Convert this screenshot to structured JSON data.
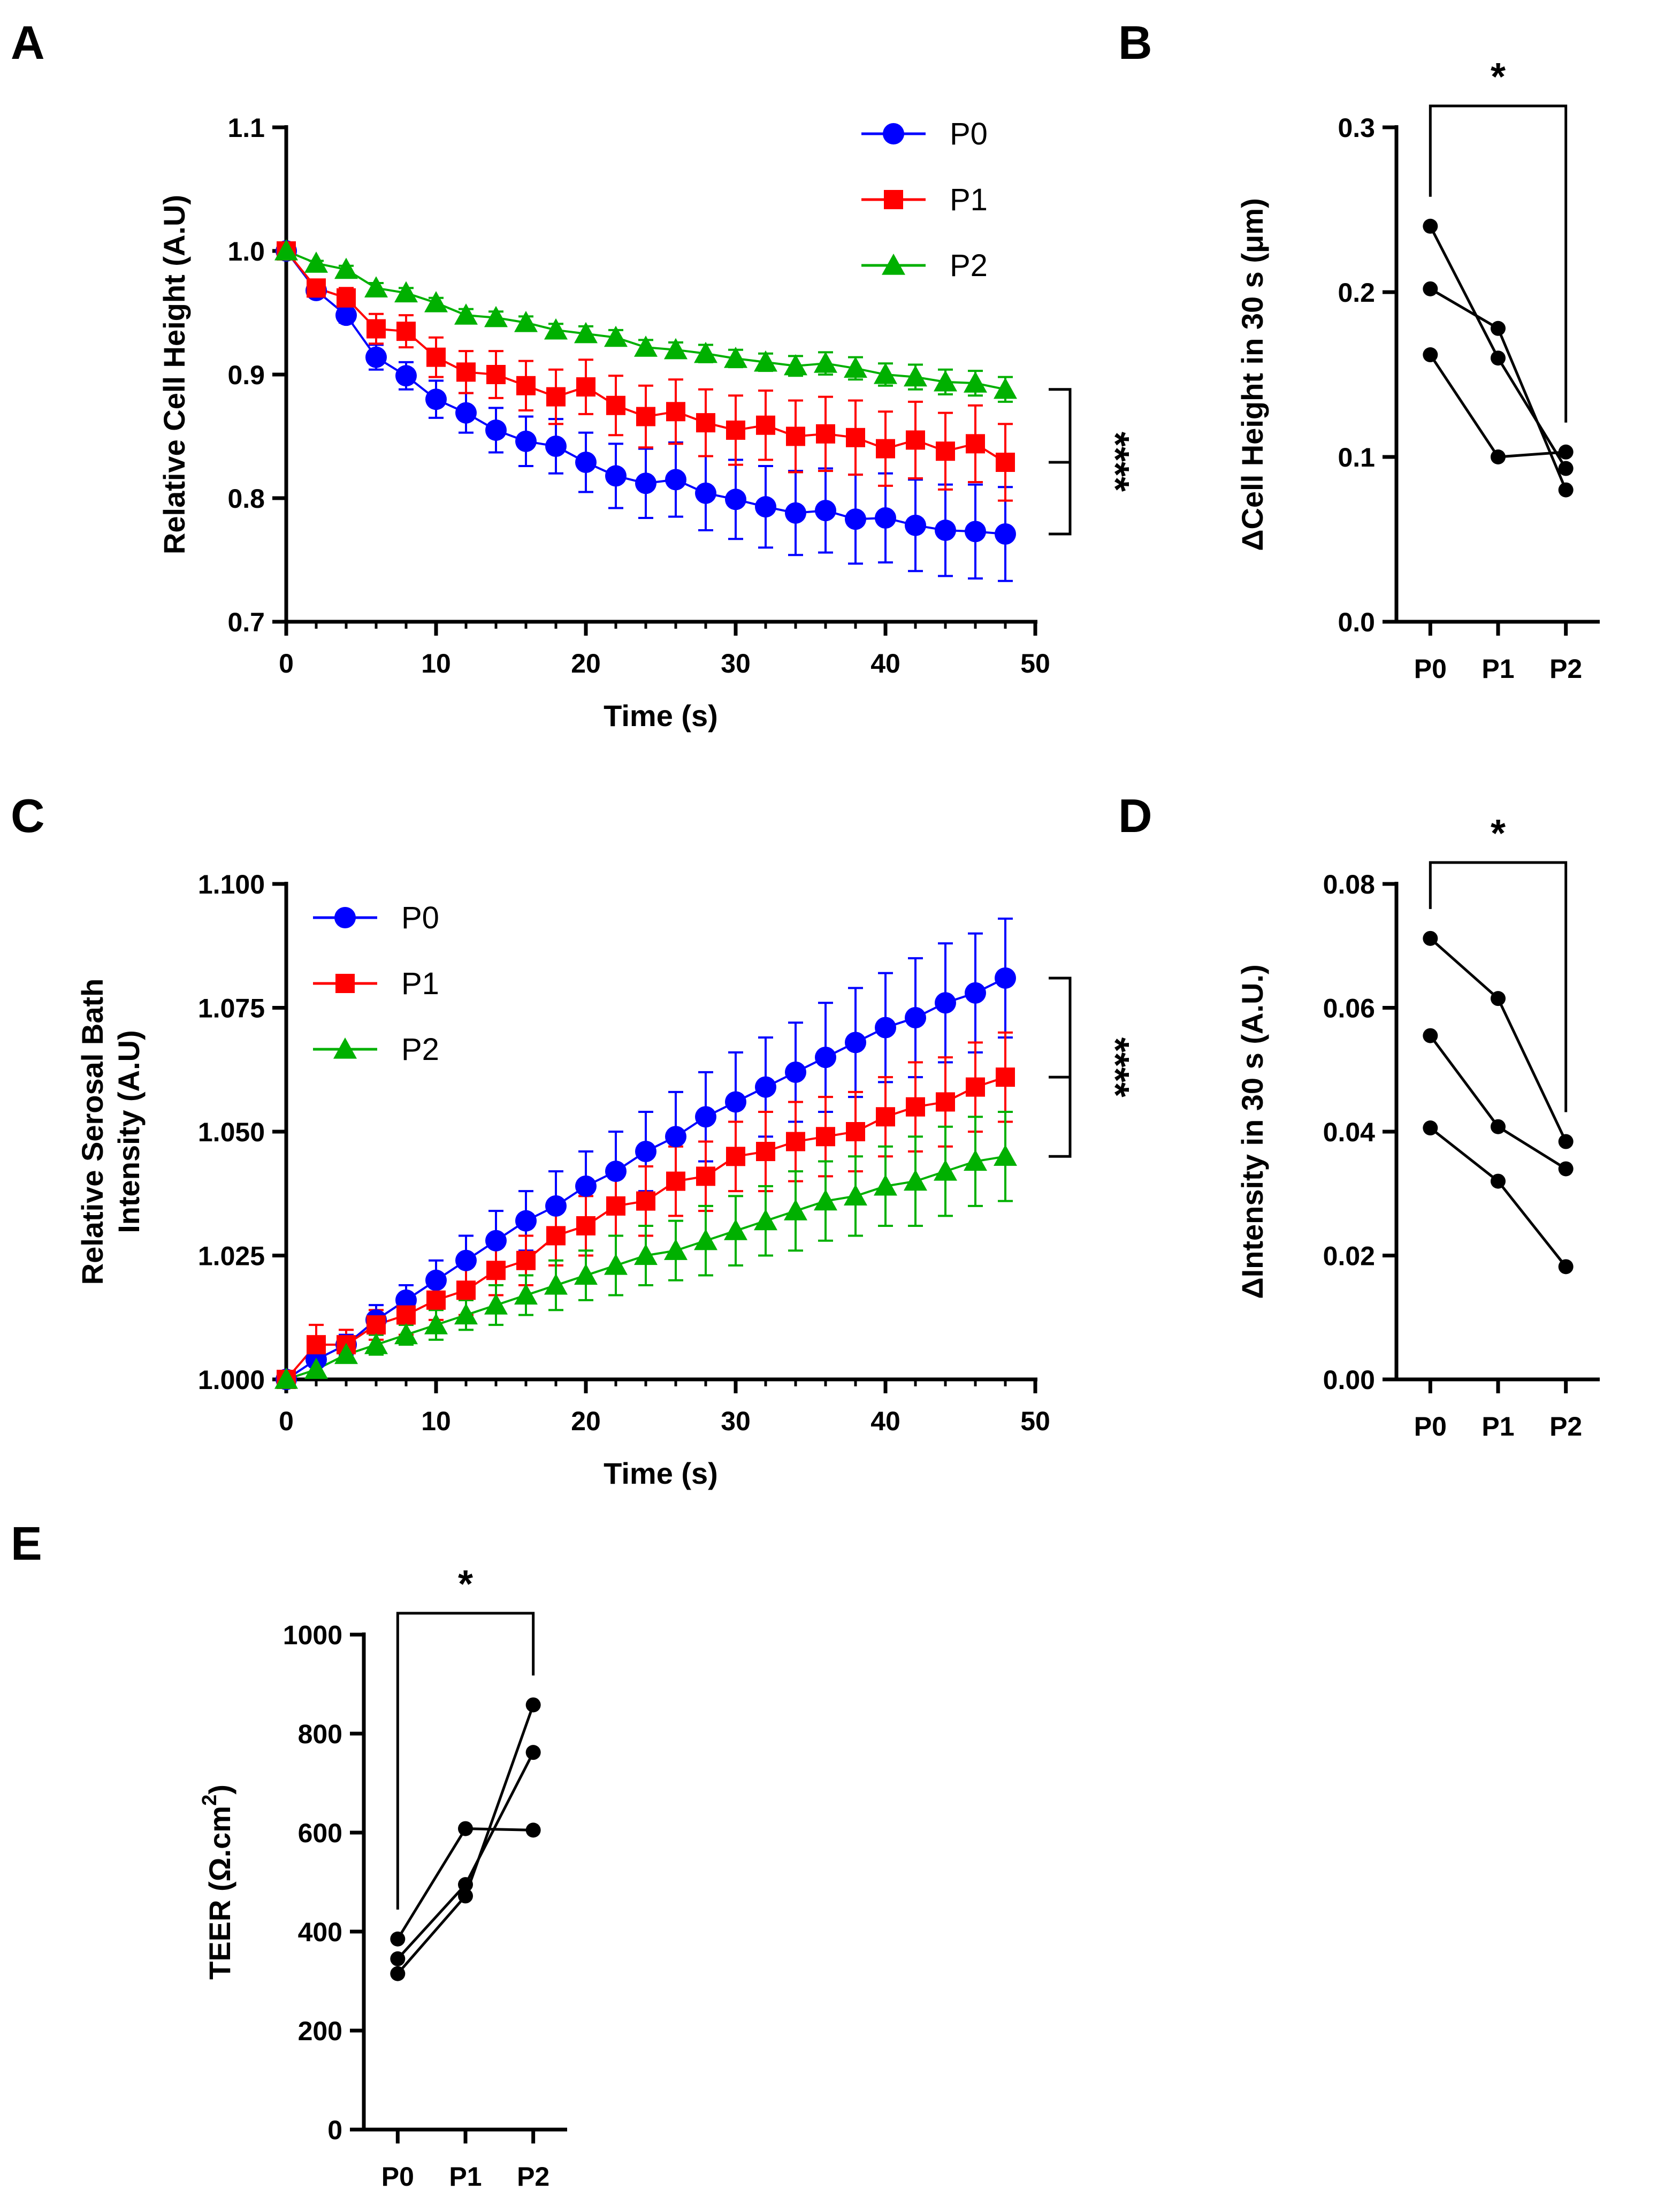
{
  "panels": {
    "A": "A",
    "B": "B",
    "C": "C",
    "D": "D",
    "E": "E"
  },
  "chart_data": [
    {
      "id": "A",
      "type": "line",
      "xlabel": "Time (s)",
      "ylabel": "Relative Cell Height (A.U)",
      "xlim": [
        0,
        50
      ],
      "ylim": [
        0.7,
        1.1
      ],
      "xticks": [
        0,
        10,
        20,
        30,
        40,
        50
      ],
      "yticks": [
        "0.7",
        "0.8",
        "0.9",
        "1.0",
        "1.1"
      ],
      "x": [
        0,
        2,
        4,
        6,
        8,
        10,
        12,
        14,
        16,
        18,
        20,
        22,
        24,
        26,
        28,
        30,
        32,
        34,
        36,
        38,
        40,
        42,
        44,
        46,
        48
      ],
      "legend_position": "top-right",
      "significance": "****",
      "series": [
        {
          "name": "P0",
          "color": "#0000ff",
          "marker": "circle",
          "values": [
            1.0,
            0.968,
            0.948,
            0.914,
            0.899,
            0.88,
            0.869,
            0.855,
            0.846,
            0.842,
            0.829,
            0.818,
            0.812,
            0.815,
            0.804,
            0.799,
            0.793,
            0.788,
            0.79,
            0.783,
            0.784,
            0.778,
            0.774,
            0.773,
            0.771
          ],
          "errors": [
            0,
            0.005,
            0.006,
            0.01,
            0.011,
            0.015,
            0.016,
            0.018,
            0.02,
            0.022,
            0.024,
            0.026,
            0.028,
            0.03,
            0.03,
            0.032,
            0.033,
            0.034,
            0.034,
            0.036,
            0.036,
            0.037,
            0.037,
            0.038,
            0.038
          ]
        },
        {
          "name": "P1",
          "color": "#ff0000",
          "marker": "square",
          "values": [
            1.0,
            0.97,
            0.962,
            0.937,
            0.935,
            0.914,
            0.902,
            0.9,
            0.891,
            0.882,
            0.89,
            0.875,
            0.866,
            0.87,
            0.861,
            0.855,
            0.859,
            0.85,
            0.852,
            0.849,
            0.84,
            0.847,
            0.838,
            0.844,
            0.829
          ],
          "errors": [
            0,
            0.006,
            0.008,
            0.012,
            0.013,
            0.016,
            0.017,
            0.019,
            0.02,
            0.022,
            0.022,
            0.024,
            0.025,
            0.026,
            0.027,
            0.028,
            0.028,
            0.029,
            0.03,
            0.03,
            0.03,
            0.031,
            0.031,
            0.031,
            0.031
          ]
        },
        {
          "name": "P2",
          "color": "#00b000",
          "marker": "triangle",
          "values": [
            1.0,
            0.99,
            0.985,
            0.97,
            0.966,
            0.958,
            0.948,
            0.946,
            0.942,
            0.936,
            0.933,
            0.93,
            0.922,
            0.92,
            0.917,
            0.913,
            0.91,
            0.907,
            0.909,
            0.905,
            0.9,
            0.898,
            0.894,
            0.893,
            0.888
          ],
          "errors": [
            0,
            0.002,
            0.003,
            0.004,
            0.004,
            0.004,
            0.005,
            0.005,
            0.005,
            0.005,
            0.006,
            0.006,
            0.006,
            0.006,
            0.007,
            0.007,
            0.007,
            0.008,
            0.009,
            0.009,
            0.009,
            0.01,
            0.01,
            0.01,
            0.01
          ]
        }
      ]
    },
    {
      "id": "B",
      "type": "line",
      "ylabel": "ΔCell Height in 30 s (μm)",
      "categories": [
        "P0",
        "P1",
        "P2"
      ],
      "ylim": [
        0,
        0.3
      ],
      "yticks": [
        "0.0",
        "0.1",
        "0.2",
        "0.3"
      ],
      "significance": "*",
      "series": [
        {
          "values": [
            0.24,
            0.16,
            0.093
          ]
        },
        {
          "values": [
            0.202,
            0.178,
            0.08
          ]
        },
        {
          "values": [
            0.162,
            0.1,
            0.103
          ]
        }
      ]
    },
    {
      "id": "C",
      "type": "line",
      "xlabel": "Time (s)",
      "ylabel": "Relative Serosal Bath Intensity (A.U)",
      "ylabel_lines": [
        "Relative Serosal Bath",
        "Intensity (A.U)"
      ],
      "xlim": [
        0,
        50
      ],
      "ylim": [
        1.0,
        1.1
      ],
      "xticks": [
        0,
        10,
        20,
        30,
        40,
        50
      ],
      "yticks": [
        "1.000",
        "1.025",
        "1.050",
        "1.075",
        "1.100"
      ],
      "x": [
        0,
        2,
        4,
        6,
        8,
        10,
        12,
        14,
        16,
        18,
        20,
        22,
        24,
        26,
        28,
        30,
        32,
        34,
        36,
        38,
        40,
        42,
        44,
        46,
        48
      ],
      "legend_position": "top-left",
      "significance": "****",
      "series": [
        {
          "name": "P0",
          "color": "#0000ff",
          "marker": "circle",
          "values": [
            1.0,
            1.004,
            1.007,
            1.012,
            1.016,
            1.02,
            1.024,
            1.028,
            1.032,
            1.035,
            1.039,
            1.042,
            1.046,
            1.049,
            1.053,
            1.056,
            1.059,
            1.062,
            1.065,
            1.068,
            1.071,
            1.073,
            1.076,
            1.078,
            1.081
          ],
          "errors": [
            0,
            0.001,
            0.002,
            0.003,
            0.003,
            0.004,
            0.005,
            0.006,
            0.006,
            0.007,
            0.007,
            0.008,
            0.008,
            0.009,
            0.009,
            0.01,
            0.01,
            0.01,
            0.011,
            0.011,
            0.011,
            0.012,
            0.012,
            0.012,
            0.012
          ]
        },
        {
          "name": "P1",
          "color": "#ff0000",
          "marker": "square",
          "values": [
            1.0,
            1.007,
            1.007,
            1.011,
            1.013,
            1.016,
            1.018,
            1.022,
            1.024,
            1.029,
            1.031,
            1.035,
            1.036,
            1.04,
            1.041,
            1.045,
            1.046,
            1.048,
            1.049,
            1.05,
            1.053,
            1.055,
            1.056,
            1.059,
            1.061
          ],
          "errors": [
            0,
            0.004,
            0.003,
            0.003,
            0.004,
            0.004,
            0.005,
            0.005,
            0.005,
            0.006,
            0.006,
            0.006,
            0.007,
            0.007,
            0.007,
            0.007,
            0.008,
            0.008,
            0.008,
            0.008,
            0.008,
            0.009,
            0.009,
            0.009,
            0.009
          ]
        },
        {
          "name": "P2",
          "color": "#00b000",
          "marker": "triangle",
          "values": [
            1.0,
            1.002,
            1.005,
            1.007,
            1.009,
            1.011,
            1.013,
            1.015,
            1.017,
            1.019,
            1.021,
            1.023,
            1.025,
            1.026,
            1.028,
            1.03,
            1.032,
            1.034,
            1.036,
            1.037,
            1.039,
            1.04,
            1.042,
            1.044,
            1.045
          ],
          "errors": [
            0,
            0.001,
            0.001,
            0.002,
            0.002,
            0.003,
            0.003,
            0.004,
            0.004,
            0.005,
            0.005,
            0.006,
            0.006,
            0.006,
            0.007,
            0.007,
            0.007,
            0.008,
            0.008,
            0.008,
            0.008,
            0.009,
            0.009,
            0.009,
            0.009
          ]
        }
      ]
    },
    {
      "id": "D",
      "type": "line",
      "ylabel": "ΔIntensity in 30 s (A.U.)",
      "categories": [
        "P0",
        "P1",
        "P2"
      ],
      "ylim": [
        0,
        0.08
      ],
      "yticks": [
        "0.00",
        "0.02",
        "0.04",
        "0.06",
        "0.08"
      ],
      "significance": "*",
      "series": [
        {
          "values": [
            0.0712,
            0.0615,
            0.0384
          ]
        },
        {
          "values": [
            0.0555,
            0.0408,
            0.034
          ]
        },
        {
          "values": [
            0.0406,
            0.032,
            0.0182
          ]
        }
      ]
    },
    {
      "id": "E",
      "type": "line",
      "ylabel": "TEER (Ω.cm²)",
      "ylabel_main": "TEER (Ω.cm",
      "ylabel_sup": "2",
      "ylabel_end": ")",
      "categories": [
        "P0",
        "P1",
        "P2"
      ],
      "ylim": [
        0,
        1000
      ],
      "yticks": [
        "0",
        "200",
        "400",
        "600",
        "800",
        "1000"
      ],
      "significance": "*",
      "series": [
        {
          "values": [
            385,
            608,
            605
          ]
        },
        {
          "values": [
            345,
            495,
            762
          ]
        },
        {
          "values": [
            315,
            472,
            858
          ]
        }
      ]
    }
  ]
}
